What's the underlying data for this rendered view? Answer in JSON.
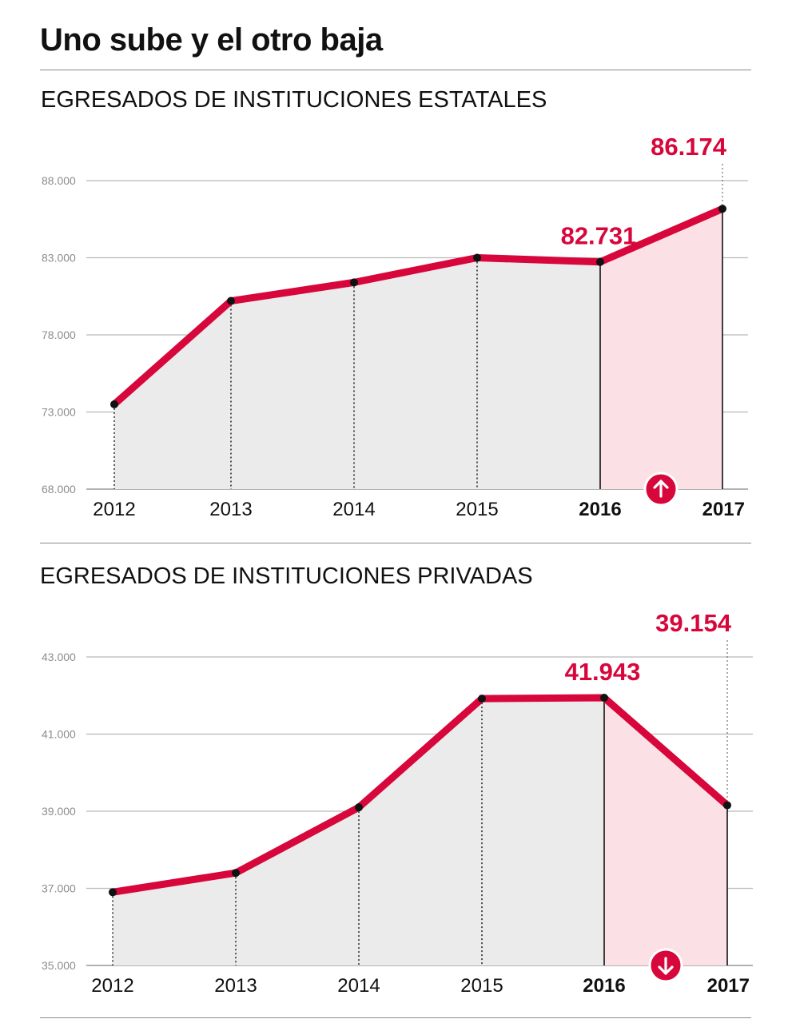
{
  "page": {
    "title": "Uno sube y el otro baja"
  },
  "colors": {
    "accent": "#d7063b",
    "area_past": "#ebebeb",
    "area_recent": "#fbe1e6",
    "grid": "#b9b9b9"
  },
  "chart_data": [
    {
      "type": "area",
      "title": "EGRESADOS DE INSTITUCIONES ESTATALES",
      "categories": [
        "2012",
        "2013",
        "2014",
        "2015",
        "2016",
        "2017"
      ],
      "values": [
        73500,
        80200,
        81400,
        83000,
        82731,
        86174
      ],
      "highlight_categories": [
        "2016",
        "2017"
      ],
      "callouts": [
        {
          "category": "2016",
          "label": "82.731"
        },
        {
          "category": "2017",
          "label": "86.174"
        }
      ],
      "trend_icon": "arrow-up-icon",
      "ylim": [
        68000,
        88000
      ],
      "yticks": [
        68000,
        73000,
        78000,
        83000,
        88000
      ],
      "ytick_labels": [
        "68.000",
        "73.000",
        "78.000",
        "83.000",
        "88.000"
      ],
      "grid": true,
      "xlabel": "",
      "ylabel": ""
    },
    {
      "type": "area",
      "title": "EGRESADOS DE INSTITUCIONES PRIVADAS",
      "categories": [
        "2012",
        "2013",
        "2014",
        "2015",
        "2016",
        "2017"
      ],
      "values": [
        36900,
        37400,
        39100,
        41920,
        41943,
        39154
      ],
      "highlight_categories": [
        "2016",
        "2017"
      ],
      "callouts": [
        {
          "category": "2016",
          "label": "41.943"
        },
        {
          "category": "2017",
          "label": "39.154"
        }
      ],
      "trend_icon": "arrow-down-icon",
      "ylim": [
        35000,
        43000
      ],
      "yticks": [
        35000,
        37000,
        39000,
        41000,
        43000
      ],
      "ytick_labels": [
        "35.000",
        "37.000",
        "39.000",
        "41.000",
        "43.000"
      ],
      "grid": true,
      "xlabel": "",
      "ylabel": ""
    }
  ]
}
